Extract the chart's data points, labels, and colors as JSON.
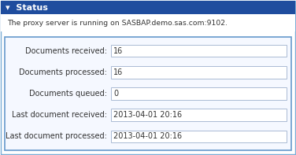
{
  "title": "Status",
  "title_bg": "#1f4d9e",
  "title_text_color": "#ffffff",
  "title_arrow": "▾",
  "body_bg": "#ffffff",
  "outer_bg": "#ffffff",
  "outer_border_color": "#7badd6",
  "inner_border_color": "#6699cc",
  "proxy_text": "The proxy server is running on SASBAP.demo.sas.com:9102.",
  "proxy_text_color": "#333333",
  "proxy_area_bg": "#ffffff",
  "form_area_bg": "#f5f8ff",
  "fields": [
    {
      "label": "Documents received:",
      "value": "16"
    },
    {
      "label": "Documents processed:",
      "value": "16"
    },
    {
      "label": "Documents queued:",
      "value": "0"
    },
    {
      "label": "Last document received:",
      "value": "2013-04-01 20:16"
    },
    {
      "label": "Last document processed:",
      "value": "2013-04-01 20:16"
    }
  ],
  "label_color": "#333333",
  "value_bg": "#ffffff",
  "value_border": "#aabbd4",
  "font_size": 7.0,
  "title_font_size": 8.0,
  "fig_width": 3.76,
  "fig_height": 1.97,
  "dpi": 100
}
